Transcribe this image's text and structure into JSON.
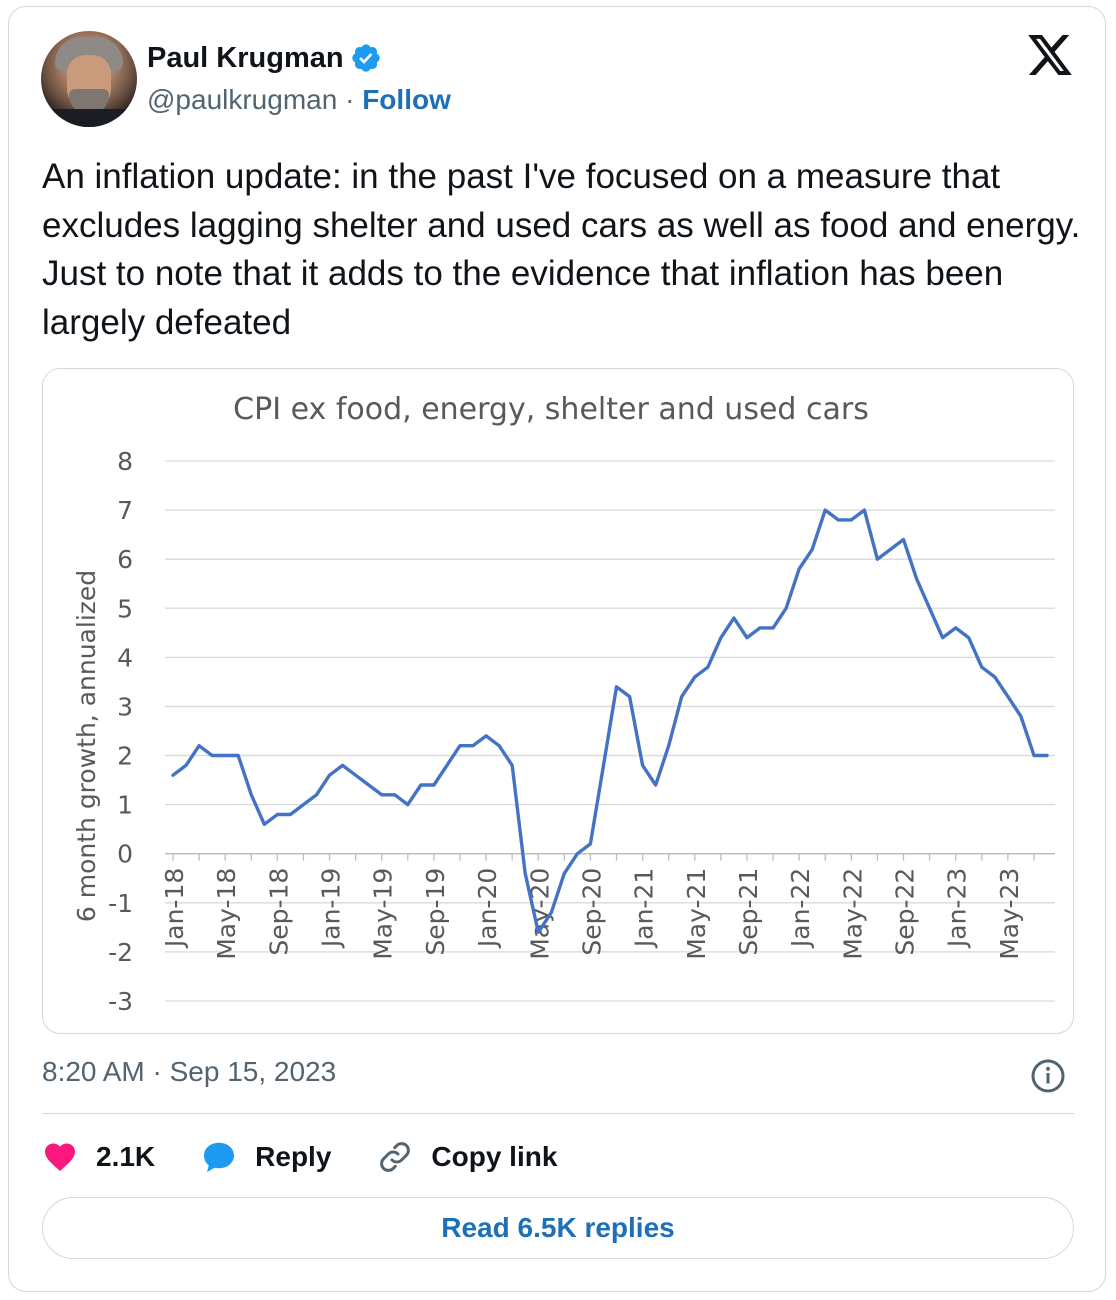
{
  "author": {
    "name": "Paul Krugman",
    "handle": "@paulkrugman",
    "separator": "·",
    "follow_label": "Follow"
  },
  "icons": {
    "verified": "verified-badge-icon",
    "logo": "x-logo-icon",
    "info": "info-icon",
    "like": "heart-icon",
    "reply": "speech-bubble-icon",
    "copy": "link-icon"
  },
  "colors": {
    "link_blue": "#1d70b8",
    "verified_blue": "#1d9bf0",
    "like_red": "#f91880",
    "line_blue": "#4472c4"
  },
  "tweet": {
    "text": "An inflation update: in the past I've focused on a measure that excludes lagging shelter and used cars as well as food and energy. Just to note that it adds to the evidence that inflation has been largely defeated",
    "timestamp": "8:20 AM · Sep 15, 2023"
  },
  "actions": {
    "like_count": "2.1K",
    "reply_label": "Reply",
    "copy_label": "Copy link",
    "read_replies_label": "Read 6.5K replies"
  },
  "chart_data": {
    "type": "line",
    "title": "CPI ex food, energy, shelter and used cars",
    "ylabel": "6 month growth, annualized",
    "xlabel": "",
    "ylim": [
      -3,
      8
    ],
    "yticks": [
      "8",
      "7",
      "6",
      "5",
      "4",
      "3",
      "2",
      "1",
      "0",
      "-1",
      "-2",
      "-3"
    ],
    "grid": true,
    "legend": "none",
    "xtick_labels": [
      "Jan-18",
      "May-18",
      "Sep-18",
      "Jan-19",
      "May-19",
      "Sep-19",
      "Jan-20",
      "May-20",
      "Sep-20",
      "Jan-21",
      "May-21",
      "Sep-21",
      "Jan-22",
      "May-22",
      "Sep-22",
      "Jan-23",
      "May-23"
    ],
    "x": [
      "Jan-18",
      "Feb-18",
      "Mar-18",
      "Apr-18",
      "May-18",
      "Jun-18",
      "Jul-18",
      "Aug-18",
      "Sep-18",
      "Oct-18",
      "Nov-18",
      "Dec-18",
      "Jan-19",
      "Feb-19",
      "Mar-19",
      "Apr-19",
      "May-19",
      "Jun-19",
      "Jul-19",
      "Aug-19",
      "Sep-19",
      "Oct-19",
      "Nov-19",
      "Dec-19",
      "Jan-20",
      "Feb-20",
      "Mar-20",
      "Apr-20",
      "May-20",
      "Jun-20",
      "Jul-20",
      "Aug-20",
      "Sep-20",
      "Oct-20",
      "Nov-20",
      "Dec-20",
      "Jan-21",
      "Feb-21",
      "Mar-21",
      "Apr-21",
      "May-21",
      "Jun-21",
      "Jul-21",
      "Aug-21",
      "Sep-21",
      "Oct-21",
      "Nov-21",
      "Dec-21",
      "Jan-22",
      "Feb-22",
      "Mar-22",
      "Apr-22",
      "May-22",
      "Jun-22",
      "Jul-22",
      "Aug-22",
      "Sep-22",
      "Oct-22",
      "Nov-22",
      "Dec-22",
      "Jan-23",
      "Feb-23",
      "Mar-23",
      "Apr-23",
      "May-23",
      "Jun-23",
      "Jul-23",
      "Aug-23"
    ],
    "series": [
      {
        "values": [
          1.6,
          1.8,
          2.2,
          2.0,
          2.0,
          2.0,
          1.2,
          0.6,
          0.8,
          0.8,
          1.0,
          1.2,
          1.6,
          1.8,
          1.6,
          1.4,
          1.2,
          1.2,
          1.0,
          1.4,
          1.4,
          1.8,
          2.2,
          2.2,
          2.4,
          2.2,
          1.8,
          -0.4,
          -1.6,
          -1.2,
          -0.4,
          0.0,
          0.2,
          1.8,
          3.4,
          3.2,
          1.8,
          1.4,
          2.2,
          3.2,
          3.6,
          3.8,
          4.4,
          4.8,
          4.4,
          4.6,
          4.6,
          5.0,
          5.8,
          6.2,
          7.0,
          6.8,
          6.8,
          7.0,
          6.0,
          6.2,
          6.4,
          5.6,
          5.0,
          4.4,
          4.6,
          4.4,
          3.8,
          3.6,
          3.2,
          2.8,
          2.0,
          2.0
        ]
      }
    ]
  }
}
